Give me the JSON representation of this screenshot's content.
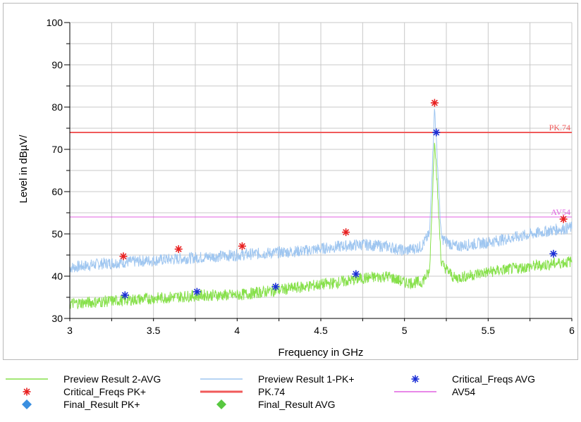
{
  "chart_data": {
    "type": "line",
    "xlabel": "Frequency in GHz",
    "ylabel": "Level in dBµV/",
    "xlim": [
      3,
      6
    ],
    "ylim": [
      30,
      100
    ],
    "x_ticks": [
      "3",
      "3.5",
      "4",
      "4.5",
      "5",
      "5.5",
      "6"
    ],
    "y_ticks": [
      "30",
      "40",
      "50",
      "60",
      "70",
      "80",
      "90",
      "100"
    ],
    "grid": true,
    "series": [
      {
        "name": "Preview Result 1-PK+",
        "color": "#9fc6f0",
        "style": "noisy-band",
        "x": [
          3.0,
          3.2,
          3.4,
          3.6,
          3.8,
          4.0,
          4.2,
          4.4,
          4.6,
          4.75,
          4.9,
          5.0,
          5.1,
          5.15,
          5.18,
          5.22,
          5.3,
          5.5,
          5.7,
          5.9,
          6.0
        ],
        "y": [
          42,
          43,
          43.5,
          44,
          44.5,
          45,
          45.5,
          46,
          47,
          47.5,
          47,
          46,
          47,
          50,
          80,
          49,
          47,
          48,
          49.5,
          51,
          51.5
        ]
      },
      {
        "name": "Preview Result 2-AVG",
        "color": "#86e04a",
        "style": "noisy-band",
        "x": [
          3.0,
          3.2,
          3.4,
          3.6,
          3.8,
          4.0,
          4.2,
          4.4,
          4.6,
          4.75,
          4.9,
          5.0,
          5.1,
          5.15,
          5.18,
          5.22,
          5.3,
          5.5,
          5.7,
          5.9,
          6.0
        ],
        "y": [
          33.5,
          34,
          34.5,
          35,
          35.5,
          35.5,
          36.5,
          37.5,
          38.5,
          39.5,
          40,
          38.5,
          38.5,
          41,
          73,
          43,
          39.5,
          41,
          42,
          43,
          43.5
        ]
      }
    ],
    "critical_freqs_pk": {
      "name": "Critical_Freqs PK+",
      "color": "#e82020",
      "x": [
        3.32,
        3.65,
        4.03,
        4.65,
        5.18,
        5.95
      ],
      "y": [
        44.7,
        46.4,
        47.1,
        50.4,
        81.0,
        53.5
      ]
    },
    "critical_freqs_avg": {
      "name": "Critical_Freqs AVG",
      "color": "#1c2fd6",
      "x": [
        3.33,
        3.76,
        4.23,
        4.71,
        5.19,
        5.89
      ],
      "y": [
        35.5,
        36.3,
        37.5,
        40.5,
        74.0,
        45.3
      ]
    },
    "limit_lines": [
      {
        "name": "PK.74",
        "label": "PK.74",
        "value": 74,
        "color": "#f05a5a",
        "width": 2
      },
      {
        "name": "AV54",
        "label": "AV54",
        "value": 54,
        "color": "#e060e0",
        "width": 1
      }
    ]
  },
  "legend": {
    "items": [
      {
        "label": "Preview Result 2-AVG",
        "kind": "line",
        "color": "#86e04a"
      },
      {
        "label": "Preview Result 1-PK+",
        "kind": "line",
        "color": "#9fc6f0"
      },
      {
        "label": "Critical_Freqs AVG",
        "kind": "star",
        "color": "#1c2fd6"
      },
      {
        "label": "Critical_Freqs PK+",
        "kind": "star",
        "color": "#e82020"
      },
      {
        "label": "PK.74",
        "kind": "thick-line",
        "color": "#f05a5a"
      },
      {
        "label": "AV54",
        "kind": "line",
        "color": "#e060e0"
      },
      {
        "label": "Final_Result PK+",
        "kind": "diamond",
        "color": "#3a8fe0"
      },
      {
        "label": "Final_Result AVG",
        "kind": "diamond",
        "color": "#58c840"
      }
    ]
  }
}
